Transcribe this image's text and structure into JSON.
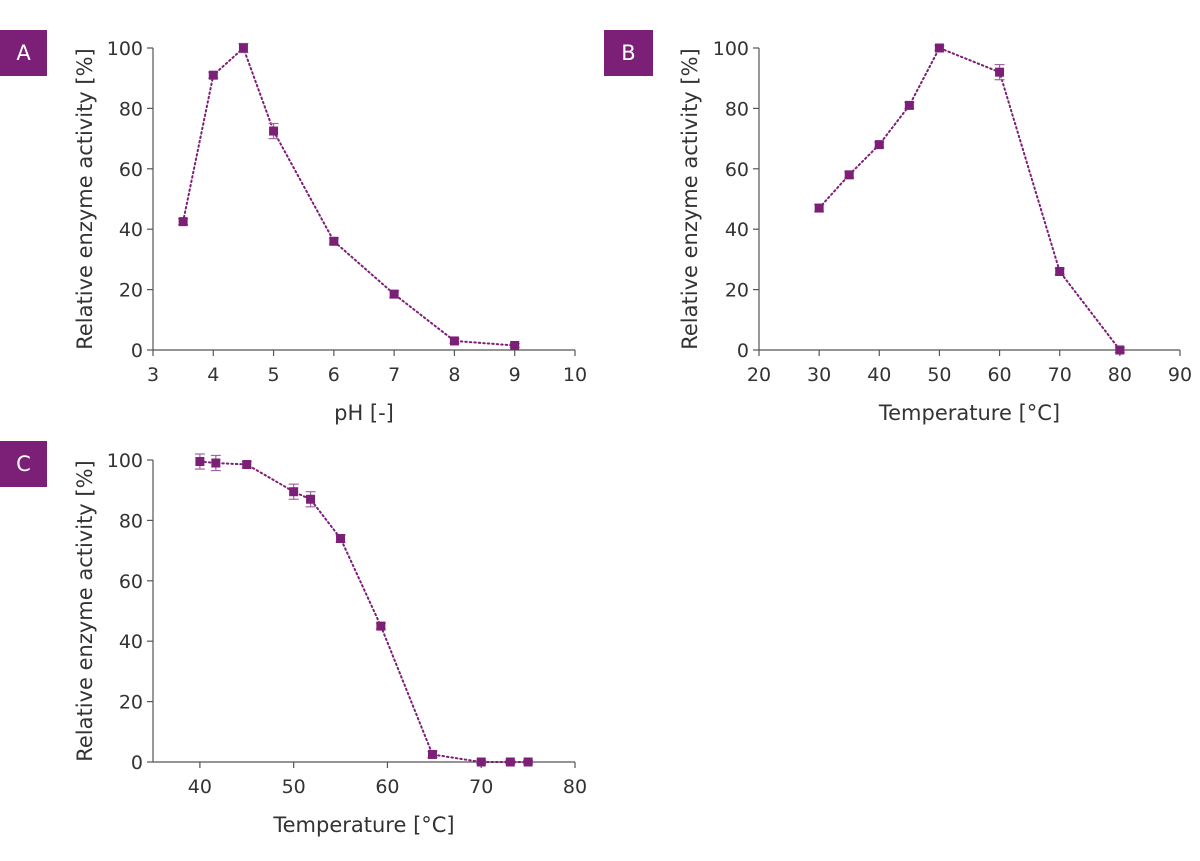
{
  "colors": {
    "accent": "#7b1f77",
    "error_bar": "#a066a0",
    "axis": "#555555",
    "label_bg": "#7b1f77"
  },
  "chart_data": [
    {
      "type": "line",
      "panel_label": "A",
      "xlabel": "pH [-]",
      "ylabel": "Relative enzyme activity [%]",
      "xlim": [
        3,
        10
      ],
      "ylim": [
        0,
        100
      ],
      "xticks": [
        3,
        4,
        5,
        6,
        7,
        8,
        9,
        10
      ],
      "yticks": [
        0,
        20,
        40,
        60,
        80,
        100
      ],
      "grid": false,
      "marker": "square",
      "line_style": "dotted",
      "x": [
        3.5,
        4,
        4.5,
        5,
        6,
        7,
        8,
        9
      ],
      "y": [
        42.5,
        91,
        100,
        72.5,
        36,
        18.5,
        3,
        1.5
      ],
      "error": [
        1,
        1,
        1.5,
        2.5,
        1,
        1.2,
        0.8,
        0.6
      ]
    },
    {
      "type": "line",
      "panel_label": "B",
      "xlabel": "Temperature [°C]",
      "ylabel": "Relative enzyme activity [%]",
      "xlim": [
        20,
        90
      ],
      "ylim": [
        0,
        100
      ],
      "xticks": [
        20,
        30,
        40,
        50,
        60,
        70,
        80,
        90
      ],
      "yticks": [
        0,
        20,
        40,
        60,
        80,
        100
      ],
      "grid": false,
      "marker": "square",
      "line_style": "dotted",
      "x": [
        30,
        35,
        40,
        45,
        50,
        60,
        70,
        80
      ],
      "y": [
        47,
        58,
        68,
        81,
        100,
        92,
        26,
        0
      ],
      "error": [
        1.2,
        1,
        0.8,
        1,
        0.8,
        2.5,
        1,
        0.8
      ]
    },
    {
      "type": "line",
      "panel_label": "C",
      "xlabel": "Temperature [°C]",
      "ylabel": "Relative enzyme activity [%]",
      "xlim": [
        35,
        80
      ],
      "ylim": [
        0,
        100
      ],
      "xticks": [
        40,
        50,
        60,
        70,
        80
      ],
      "yticks": [
        0,
        20,
        40,
        60,
        80,
        100
      ],
      "grid": false,
      "marker": "square",
      "line_style": "dotted",
      "x": [
        40,
        41.7,
        45,
        50,
        51.8,
        55,
        59.3,
        64.8,
        70,
        73.1,
        75
      ],
      "y": [
        99.5,
        99,
        98.5,
        89.5,
        87,
        74,
        45,
        2.5,
        0,
        0,
        0
      ],
      "error": [
        2.5,
        2.5,
        1,
        2.5,
        2.5,
        1.2,
        1,
        1,
        0.5,
        0.5,
        0.5
      ]
    }
  ]
}
